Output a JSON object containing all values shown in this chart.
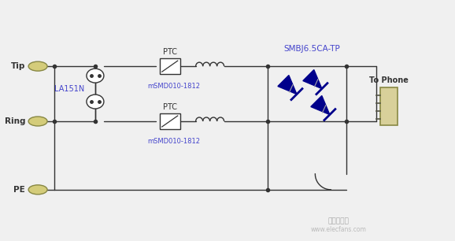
{
  "background_color": "#f0f0f0",
  "line_color": "#333333",
  "label_color": "#4444cc",
  "diode_color": "#00008b",
  "labels": {
    "Tip": "Tip",
    "Ring": "Ring",
    "PE": "PE",
    "LA151N": "LA151N",
    "PTC": "PTC",
    "mSMD1": "mSMD010-1812",
    "mSMD2": "mSMD010-1812",
    "SMBJ": "SMBJ6.5CA-TP",
    "ToPhone": "To Phone"
  },
  "figsize": [
    5.78,
    3.06
  ],
  "dpi": 100
}
